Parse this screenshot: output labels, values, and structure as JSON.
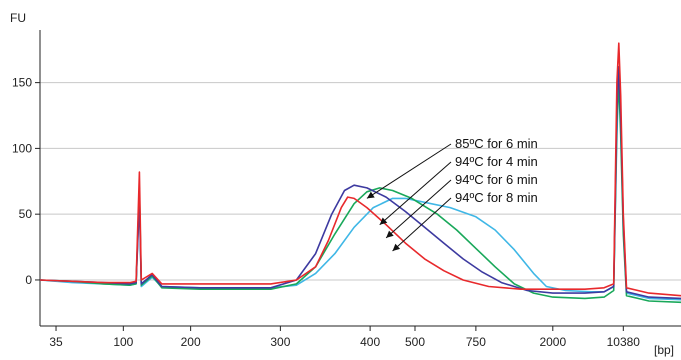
{
  "chart_data": {
    "type": "line",
    "title": "",
    "ylabel": "FU",
    "xlabel": "[bp]",
    "ylim": [
      -35,
      190
    ],
    "yticks": [
      0,
      50,
      100,
      150
    ],
    "xtick_labels": [
      "35",
      "100",
      "200",
      "300",
      "400",
      "500",
      "750",
      "2000",
      "10380"
    ],
    "xtick_positions": [
      0.025,
      0.13,
      0.235,
      0.375,
      0.515,
      0.585,
      0.68,
      0.8,
      0.91
    ],
    "grid": "horizontal",
    "legend": "annotations",
    "annotations": [
      {
        "text": "85ºC for 6 min",
        "series": 0
      },
      {
        "text": "94ºC for 4 min",
        "series": 1
      },
      {
        "text": "94ºC for 6 min",
        "series": 2
      },
      {
        "text": "94ºC for 8 min",
        "series": 3
      }
    ],
    "series": [
      {
        "name": "85ºC for 6 min",
        "color": "#3fb7e6",
        "points": [
          [
            0.0,
            0
          ],
          [
            0.05,
            -2
          ],
          [
            0.1,
            -3
          ],
          [
            0.14,
            -4
          ],
          [
            0.15,
            -3
          ],
          [
            0.155,
            65
          ],
          [
            0.158,
            -5
          ],
          [
            0.175,
            2
          ],
          [
            0.19,
            -5
          ],
          [
            0.25,
            -6
          ],
          [
            0.3,
            -6
          ],
          [
            0.36,
            -6
          ],
          [
            0.4,
            -4
          ],
          [
            0.43,
            5
          ],
          [
            0.46,
            20
          ],
          [
            0.49,
            40
          ],
          [
            0.52,
            55
          ],
          [
            0.55,
            62
          ],
          [
            0.57,
            62
          ],
          [
            0.6,
            59
          ],
          [
            0.64,
            55
          ],
          [
            0.68,
            48
          ],
          [
            0.71,
            38
          ],
          [
            0.74,
            23
          ],
          [
            0.77,
            5
          ],
          [
            0.79,
            -5
          ],
          [
            0.82,
            -8
          ],
          [
            0.86,
            -9
          ],
          [
            0.88,
            -9
          ],
          [
            0.895,
            -5
          ],
          [
            0.9,
            110
          ],
          [
            0.903,
            155
          ],
          [
            0.906,
            120
          ],
          [
            0.91,
            40
          ],
          [
            0.915,
            -10
          ],
          [
            0.95,
            -14
          ],
          [
            1.0,
            -15
          ]
        ]
      },
      {
        "name": "94ºC for 4 min",
        "color": "#19a85a",
        "points": [
          [
            0.0,
            0
          ],
          [
            0.05,
            -1
          ],
          [
            0.1,
            -3
          ],
          [
            0.14,
            -4
          ],
          [
            0.15,
            -3
          ],
          [
            0.155,
            70
          ],
          [
            0.158,
            -4
          ],
          [
            0.175,
            3
          ],
          [
            0.19,
            -6
          ],
          [
            0.25,
            -7
          ],
          [
            0.3,
            -7
          ],
          [
            0.36,
            -7
          ],
          [
            0.4,
            -3
          ],
          [
            0.43,
            10
          ],
          [
            0.46,
            35
          ],
          [
            0.49,
            58
          ],
          [
            0.51,
            67
          ],
          [
            0.53,
            70
          ],
          [
            0.55,
            68
          ],
          [
            0.58,
            62
          ],
          [
            0.62,
            50
          ],
          [
            0.65,
            38
          ],
          [
            0.68,
            24
          ],
          [
            0.71,
            10
          ],
          [
            0.74,
            -3
          ],
          [
            0.77,
            -10
          ],
          [
            0.8,
            -13
          ],
          [
            0.85,
            -14
          ],
          [
            0.88,
            -13
          ],
          [
            0.895,
            -8
          ],
          [
            0.9,
            120
          ],
          [
            0.903,
            150
          ],
          [
            0.906,
            110
          ],
          [
            0.91,
            35
          ],
          [
            0.915,
            -12
          ],
          [
            0.95,
            -16
          ],
          [
            1.0,
            -17
          ]
        ]
      },
      {
        "name": "94ºC for 6 min",
        "color": "#3d3aa0",
        "points": [
          [
            0.0,
            0
          ],
          [
            0.05,
            -1
          ],
          [
            0.1,
            -2
          ],
          [
            0.14,
            -3
          ],
          [
            0.15,
            -2
          ],
          [
            0.155,
            60
          ],
          [
            0.158,
            -3
          ],
          [
            0.175,
            4
          ],
          [
            0.19,
            -5
          ],
          [
            0.25,
            -6
          ],
          [
            0.3,
            -6
          ],
          [
            0.36,
            -6
          ],
          [
            0.4,
            0
          ],
          [
            0.43,
            20
          ],
          [
            0.455,
            50
          ],
          [
            0.475,
            68
          ],
          [
            0.49,
            72
          ],
          [
            0.51,
            70
          ],
          [
            0.54,
            63
          ],
          [
            0.57,
            52
          ],
          [
            0.6,
            40
          ],
          [
            0.63,
            28
          ],
          [
            0.66,
            16
          ],
          [
            0.69,
            6
          ],
          [
            0.72,
            -2
          ],
          [
            0.76,
            -8
          ],
          [
            0.8,
            -10
          ],
          [
            0.85,
            -10
          ],
          [
            0.88,
            -9
          ],
          [
            0.895,
            -5
          ],
          [
            0.9,
            130
          ],
          [
            0.903,
            162
          ],
          [
            0.906,
            125
          ],
          [
            0.91,
            45
          ],
          [
            0.915,
            -9
          ],
          [
            0.95,
            -13
          ],
          [
            1.0,
            -14
          ]
        ]
      },
      {
        "name": "94ºC for 8 min",
        "color": "#e8292c",
        "points": [
          [
            0.0,
            0
          ],
          [
            0.05,
            -1
          ],
          [
            0.1,
            -2
          ],
          [
            0.14,
            -2
          ],
          [
            0.15,
            -1
          ],
          [
            0.155,
            82
          ],
          [
            0.158,
            0
          ],
          [
            0.175,
            5
          ],
          [
            0.19,
            -3
          ],
          [
            0.25,
            -3
          ],
          [
            0.3,
            -3
          ],
          [
            0.36,
            -3
          ],
          [
            0.4,
            0
          ],
          [
            0.43,
            10
          ],
          [
            0.45,
            30
          ],
          [
            0.47,
            55
          ],
          [
            0.48,
            63
          ],
          [
            0.49,
            62
          ],
          [
            0.51,
            55
          ],
          [
            0.54,
            42
          ],
          [
            0.57,
            28
          ],
          [
            0.6,
            16
          ],
          [
            0.63,
            7
          ],
          [
            0.66,
            0
          ],
          [
            0.7,
            -5
          ],
          [
            0.75,
            -7
          ],
          [
            0.8,
            -7
          ],
          [
            0.85,
            -7
          ],
          [
            0.88,
            -6
          ],
          [
            0.895,
            -3
          ],
          [
            0.9,
            150
          ],
          [
            0.903,
            180
          ],
          [
            0.906,
            140
          ],
          [
            0.91,
            50
          ],
          [
            0.915,
            -6
          ],
          [
            0.95,
            -10
          ],
          [
            1.0,
            -12
          ]
        ]
      }
    ]
  }
}
